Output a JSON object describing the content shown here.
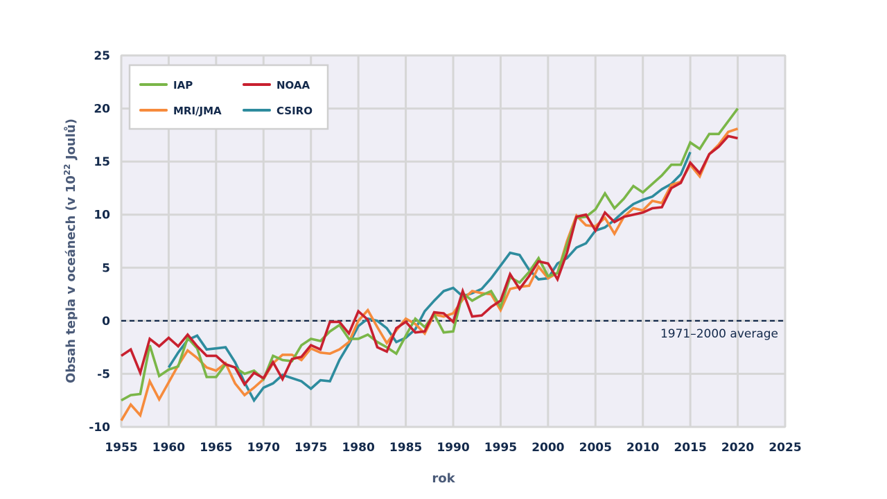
{
  "chart_data": {
    "type": "line",
    "title": "",
    "xlabel": "rok",
    "ylabel": "Obsah tepla v oceánech (v 10²² Joulů)",
    "xlim": [
      1955,
      2025
    ],
    "ylim": [
      -10,
      25
    ],
    "xticks": [
      1955,
      1960,
      1965,
      1970,
      1975,
      1980,
      1985,
      1990,
      1995,
      2000,
      2005,
      2010,
      2015,
      2020,
      2025
    ],
    "yticks": [
      -10,
      -5,
      0,
      5,
      10,
      15,
      20,
      25
    ],
    "grid": true,
    "legend_position": "top-left",
    "reference_line": {
      "y": 0,
      "label": "1971–2000 average",
      "color": "#13294b",
      "style": "dashed"
    },
    "series": [
      {
        "name": "IAP",
        "color": "#7ab648",
        "x_start": 1955,
        "values": [
          -7.5,
          -7.0,
          -6.9,
          -2.3,
          -5.2,
          -4.6,
          -4.3,
          -1.6,
          -2.6,
          -5.3,
          -5.3,
          -4.1,
          -4.4,
          -5.0,
          -4.7,
          -5.5,
          -3.3,
          -3.7,
          -3.8,
          -2.3,
          -1.7,
          -1.9,
          -1.0,
          -0.4,
          -1.7,
          -1.7,
          -1.3,
          -2.0,
          -2.5,
          -3.1,
          -1.4,
          0.2,
          -0.6,
          0.6,
          -1.1,
          -1.0,
          2.6,
          1.9,
          2.4,
          2.8,
          1.3,
          4.1,
          3.6,
          4.6,
          5.9,
          4.2,
          4.5,
          7.2,
          9.7,
          9.8,
          10.5,
          12.0,
          10.6,
          11.5,
          12.7,
          12.1,
          12.9,
          13.7,
          14.7,
          14.7,
          16.8,
          16.2,
          17.6,
          17.6,
          18.8,
          20.0
        ]
      },
      {
        "name": "NOAA",
        "color": "#c8202f",
        "x_start": 1955,
        "values": [
          -3.3,
          -2.7,
          -4.9,
          -1.7,
          -2.4,
          -1.6,
          -2.4,
          -1.3,
          -2.4,
          -3.3,
          -3.3,
          -4.1,
          -4.4,
          -6.0,
          -4.9,
          -5.4,
          -3.9,
          -5.5,
          -3.6,
          -3.4,
          -2.3,
          -2.7,
          -0.1,
          -0.1,
          -1.2,
          0.9,
          0.1,
          -2.5,
          -2.9,
          -0.7,
          -0.1,
          -1.1,
          -1.0,
          0.8,
          0.7,
          -0.1,
          2.8,
          0.4,
          0.5,
          1.3,
          1.9,
          4.4,
          3.0,
          4.2,
          5.6,
          5.4,
          3.9,
          6.4,
          9.8,
          10.0,
          8.5,
          10.2,
          9.3,
          9.8,
          10.0,
          10.2,
          10.6,
          10.7,
          12.5,
          13.0,
          14.9,
          13.9,
          15.7,
          16.4,
          17.4,
          17.2
        ]
      },
      {
        "name": "MRI/JMA",
        "color": "#f68b3c",
        "x_start": 1955,
        "values": [
          -9.4,
          -7.9,
          -8.9,
          -5.7,
          -7.4,
          -5.8,
          -4.2,
          -2.8,
          -3.5,
          -4.4,
          -4.7,
          -4.0,
          -5.9,
          -7.0,
          -6.3,
          -5.5,
          -4.0,
          -3.2,
          -3.2,
          -3.7,
          -2.6,
          -3.0,
          -3.1,
          -2.7,
          -2.0,
          0.0,
          1.0,
          -0.6,
          -2.1,
          -0.9,
          0.2,
          -0.3,
          -1.2,
          0.6,
          0.4,
          0.7,
          2.0,
          2.8,
          2.6,
          2.5,
          1.0,
          3.0,
          3.2,
          3.3,
          5.1,
          4.0,
          4.5,
          7.5,
          9.9,
          9.0,
          8.9,
          9.7,
          8.2,
          9.8,
          10.6,
          10.4,
          11.3,
          11.1,
          12.8,
          13.1,
          14.7,
          13.6,
          15.7,
          16.6,
          17.8,
          18.1
        ]
      },
      {
        "name": "CSIRO",
        "color": "#2e8c9e",
        "x_start": 1960,
        "values": [
          -4.4,
          -3.0,
          -1.8,
          -1.4,
          -2.7,
          -2.6,
          -2.5,
          -3.9,
          -5.8,
          -7.5,
          -6.3,
          -5.9,
          -5.1,
          -5.4,
          -5.7,
          -6.4,
          -5.6,
          -5.7,
          -3.7,
          -2.2,
          -0.5,
          0.2,
          0.0,
          -0.7,
          -2.0,
          -1.6,
          -0.8,
          0.9,
          1.9,
          2.8,
          3.1,
          2.3,
          2.6,
          3.0,
          4.0,
          5.2,
          6.4,
          6.2,
          4.8,
          3.9,
          4.0,
          5.4,
          5.9,
          6.9,
          7.3,
          8.5,
          8.8,
          9.5,
          10.3,
          11.0,
          11.4,
          11.7,
          12.4,
          12.9,
          13.8,
          15.9
        ]
      }
    ]
  }
}
